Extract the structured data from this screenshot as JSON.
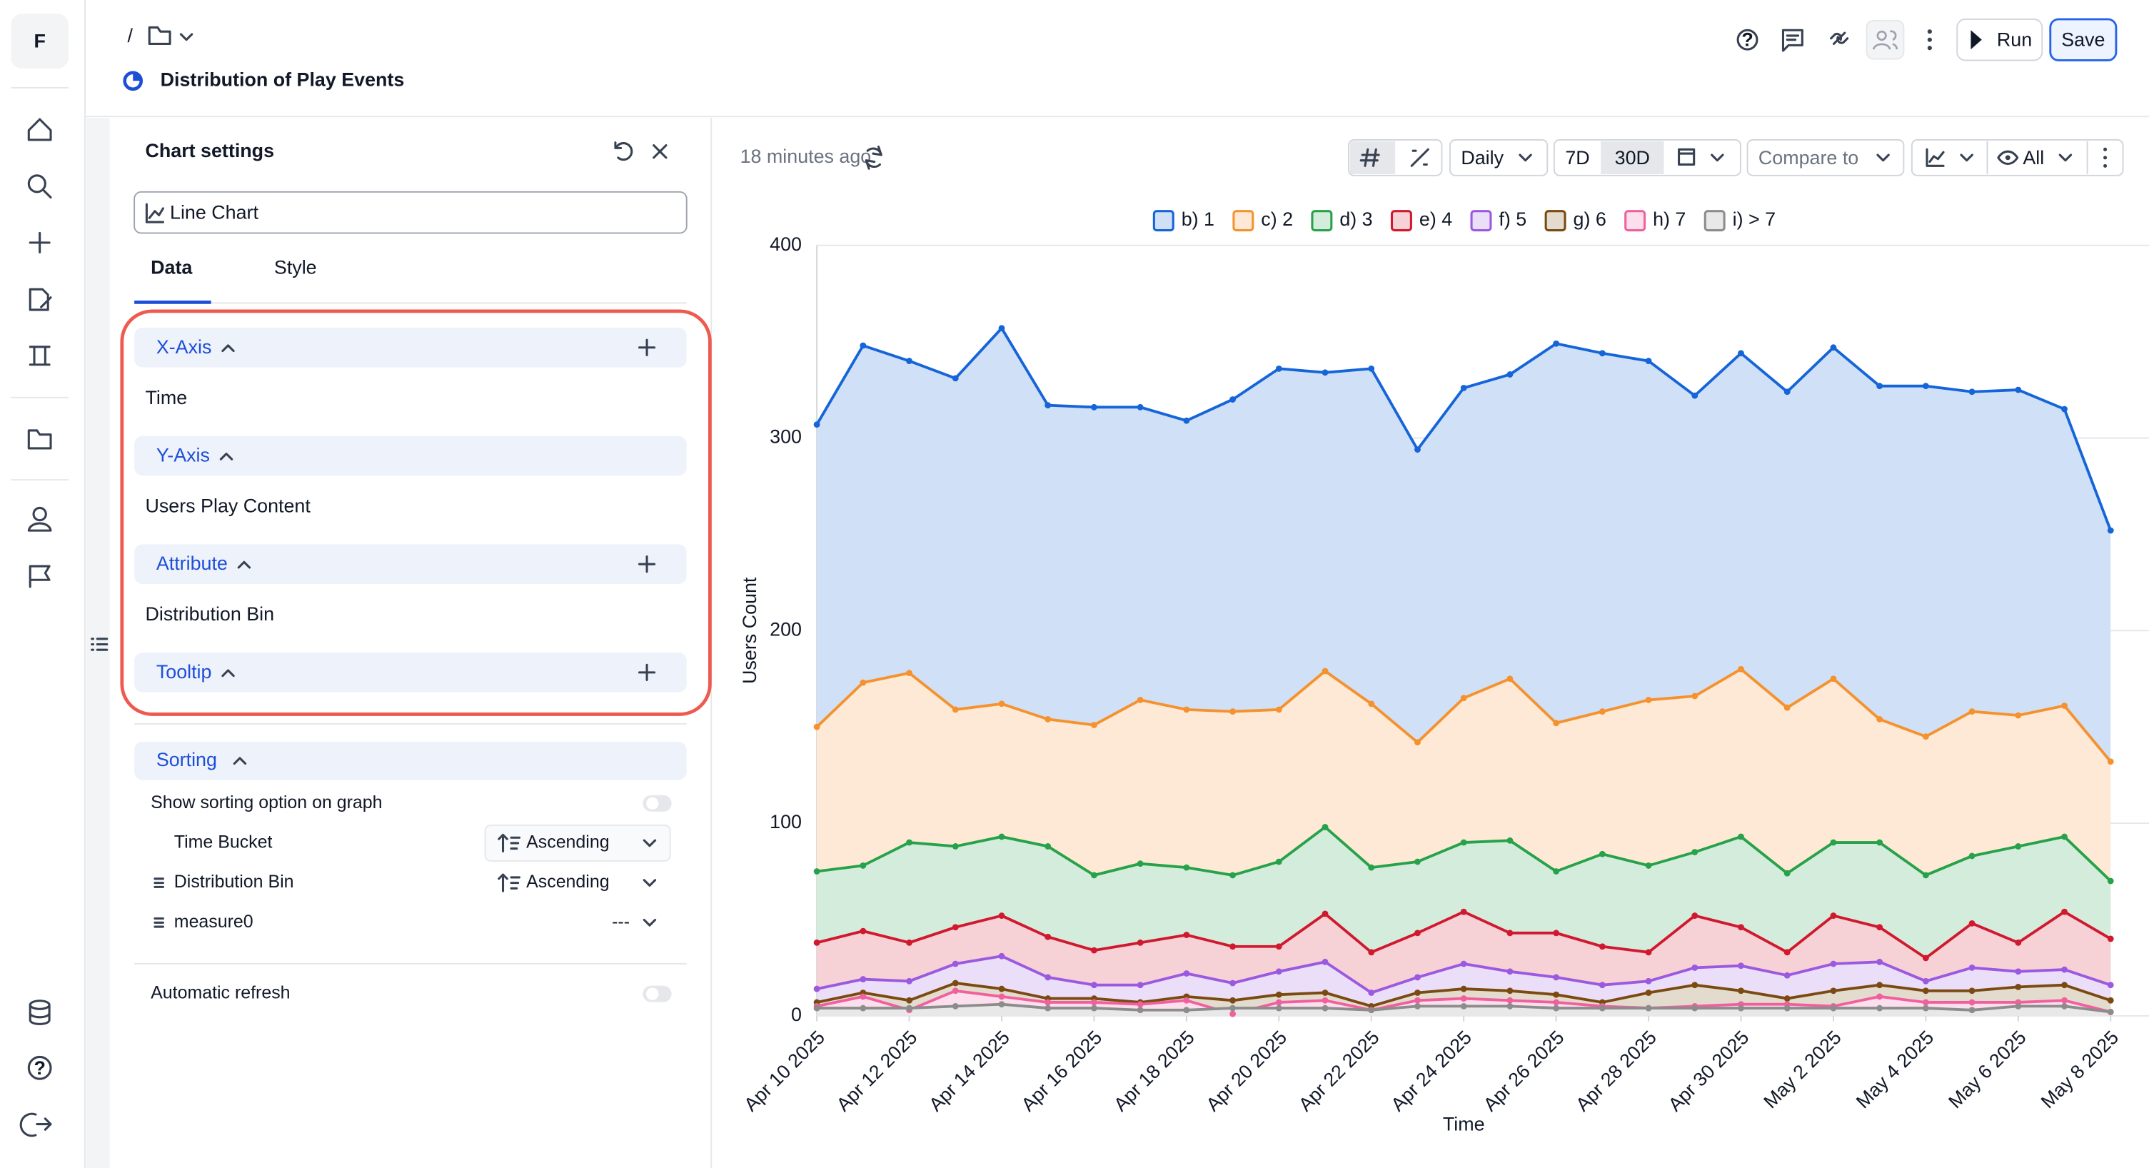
{
  "app": {
    "logo": "F"
  },
  "header": {
    "breadcrumb": "/",
    "title": "Distribution of Play Events",
    "run": "Run",
    "save": "Save"
  },
  "settings": {
    "title": "Chart settings",
    "chart_type": "Line Chart",
    "tabs": [
      "Data",
      "Style"
    ],
    "sections": [
      {
        "name": "X-Axis",
        "value": "Time"
      },
      {
        "name": "Y-Axis",
        "value": "Users Play Content"
      },
      {
        "name": "Attribute",
        "value": "Distribution Bin"
      },
      {
        "name": "Tooltip"
      }
    ],
    "sorting": {
      "title": "Sorting",
      "show_option": "Show sorting option on graph",
      "rows": [
        {
          "label": "Time Bucket",
          "order": "Ascending"
        },
        {
          "label": "Distribution Bin",
          "order": "Ascending"
        },
        {
          "label": "measure0",
          "order": "---"
        }
      ]
    },
    "auto_refresh": "Automatic refresh"
  },
  "toolbar": {
    "updated": "18 minutes ago",
    "granularity": "Daily",
    "ranges": [
      "7D",
      "30D"
    ],
    "compare": "Compare to",
    "visibility": "All"
  },
  "chart_data": {
    "type": "area",
    "y_label": "Users Count",
    "x_label": "Time",
    "categories": [
      "Apr 10 2025",
      null,
      "Apr 12 2025",
      null,
      "Apr 14 2025",
      null,
      "Apr 16 2025",
      null,
      "Apr 18 2025",
      null,
      "Apr 20 2025",
      null,
      "Apr 22 2025",
      null,
      "Apr 24 2025",
      null,
      "Apr 26 2025",
      null,
      "Apr 28 2025",
      null,
      "Apr 30 2025",
      null,
      "May 2 2025",
      null,
      "May 4 2025",
      null,
      "May 6 2025",
      null,
      "May 8 2025"
    ],
    "ylim": [
      0,
      400
    ],
    "yticks": [
      0,
      100,
      200,
      300,
      400
    ],
    "grid": true,
    "series": [
      {
        "name": "b) 1",
        "color": "#1565d8",
        "values": [
          307,
          348,
          340,
          331,
          357,
          317,
          316,
          316,
          309,
          320,
          336,
          334,
          336,
          294,
          326,
          333,
          349,
          344,
          340,
          322,
          344,
          324,
          347,
          327,
          327,
          324,
          325,
          315,
          252
        ]
      },
      {
        "name": "c) 2",
        "color": "#f5922e",
        "values": [
          150,
          173,
          178,
          159,
          162,
          154,
          151,
          164,
          159,
          158,
          159,
          179,
          162,
          142,
          165,
          175,
          152,
          158,
          164,
          166,
          180,
          160,
          175,
          154,
          145,
          158,
          156,
          161,
          132
        ]
      },
      {
        "name": "d) 3",
        "color": "#27a24a",
        "values": [
          75,
          78,
          90,
          88,
          93,
          88,
          73,
          79,
          77,
          73,
          80,
          98,
          77,
          80,
          90,
          91,
          75,
          84,
          78,
          85,
          93,
          74,
          90,
          90,
          73,
          83,
          88,
          93,
          70
        ]
      },
      {
        "name": "e) 4",
        "color": "#d0192f",
        "values": [
          38,
          44,
          38,
          46,
          52,
          41,
          34,
          38,
          42,
          36,
          36,
          53,
          33,
          43,
          54,
          43,
          43,
          36,
          33,
          52,
          46,
          33,
          52,
          46,
          30,
          48,
          38,
          54,
          40
        ]
      },
      {
        "name": "f) 5",
        "color": "#9b59e0",
        "values": [
          14,
          19,
          18,
          27,
          31,
          20,
          16,
          16,
          22,
          17,
          23,
          28,
          12,
          20,
          27,
          23,
          20,
          16,
          18,
          25,
          26,
          21,
          27,
          28,
          18,
          25,
          23,
          24,
          16
        ]
      },
      {
        "name": "g) 6",
        "color": "#7a4a10",
        "values": [
          7,
          12,
          8,
          17,
          14,
          9,
          9,
          7,
          10,
          8,
          11,
          12,
          5,
          12,
          14,
          13,
          11,
          7,
          12,
          16,
          13,
          9,
          13,
          16,
          13,
          13,
          15,
          16,
          8
        ]
      },
      {
        "name": "h) 7",
        "color": "#f0609e",
        "values": [
          5,
          10,
          3,
          13,
          10,
          7,
          7,
          6,
          8,
          1,
          7,
          8,
          3,
          8,
          9,
          8,
          7,
          5,
          4,
          5,
          6,
          6,
          5,
          10,
          7,
          7,
          7,
          8,
          2
        ]
      },
      {
        "name": "i) > 7",
        "color": "#8c8c8c",
        "values": [
          4,
          4,
          4,
          5,
          6,
          4,
          4,
          3,
          3,
          4,
          4,
          4,
          3,
          5,
          5,
          5,
          4,
          4,
          4,
          4,
          4,
          4,
          4,
          4,
          4,
          3,
          5,
          5,
          2
        ]
      }
    ]
  }
}
